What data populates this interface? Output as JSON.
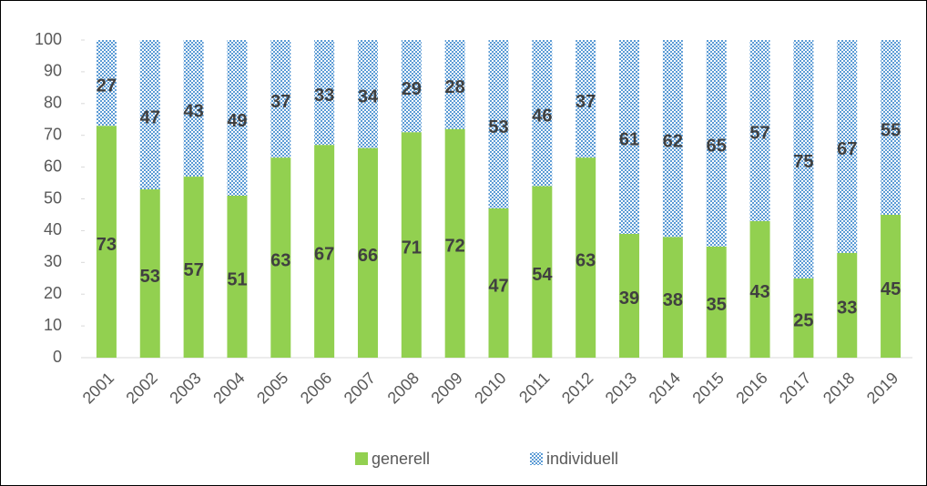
{
  "chart_data": {
    "type": "stacked_bar",
    "categories": [
      "2001",
      "2002",
      "2003",
      "2004",
      "2005",
      "2006",
      "2007",
      "2008",
      "2009",
      "2010",
      "2011",
      "2012",
      "2013",
      "2014",
      "2015",
      "2016",
      "2017",
      "2018",
      "2019"
    ],
    "series": [
      {
        "name": "generell",
        "color": "#92d050",
        "values": [
          73,
          53,
          57,
          51,
          63,
          67,
          66,
          71,
          72,
          47,
          54,
          63,
          39,
          38,
          35,
          43,
          25,
          33,
          45
        ]
      },
      {
        "name": "individuell",
        "color": "#5b9bd5",
        "values": [
          27,
          47,
          43,
          49,
          37,
          33,
          34,
          29,
          28,
          53,
          46,
          37,
          61,
          62,
          65,
          57,
          75,
          67,
          55
        ]
      }
    ],
    "ylim": [
      0,
      100
    ],
    "yticks": [
      0,
      10,
      20,
      30,
      40,
      50,
      60,
      70,
      80,
      90,
      100
    ],
    "legend": "bottom"
  }
}
